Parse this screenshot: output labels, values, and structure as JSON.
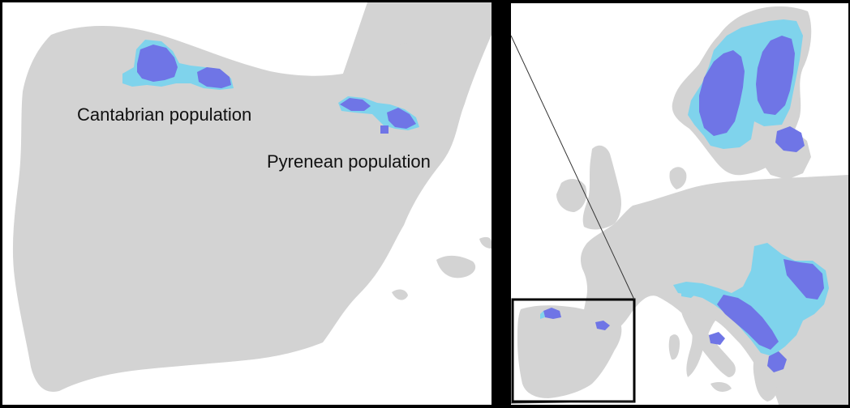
{
  "labels": {
    "cantabrian": "Cantabrian population",
    "pyrenean": "Pyrenean population"
  },
  "colors": {
    "land": "#d3d3d3",
    "sea": "#ffffff",
    "core_range": "#6f75e6",
    "peripheral_range": "#7fd3ec",
    "frame": "#000000"
  },
  "legend_semantics": {
    "core_range_color": "blue",
    "peripheral_range_color": "light blue"
  }
}
